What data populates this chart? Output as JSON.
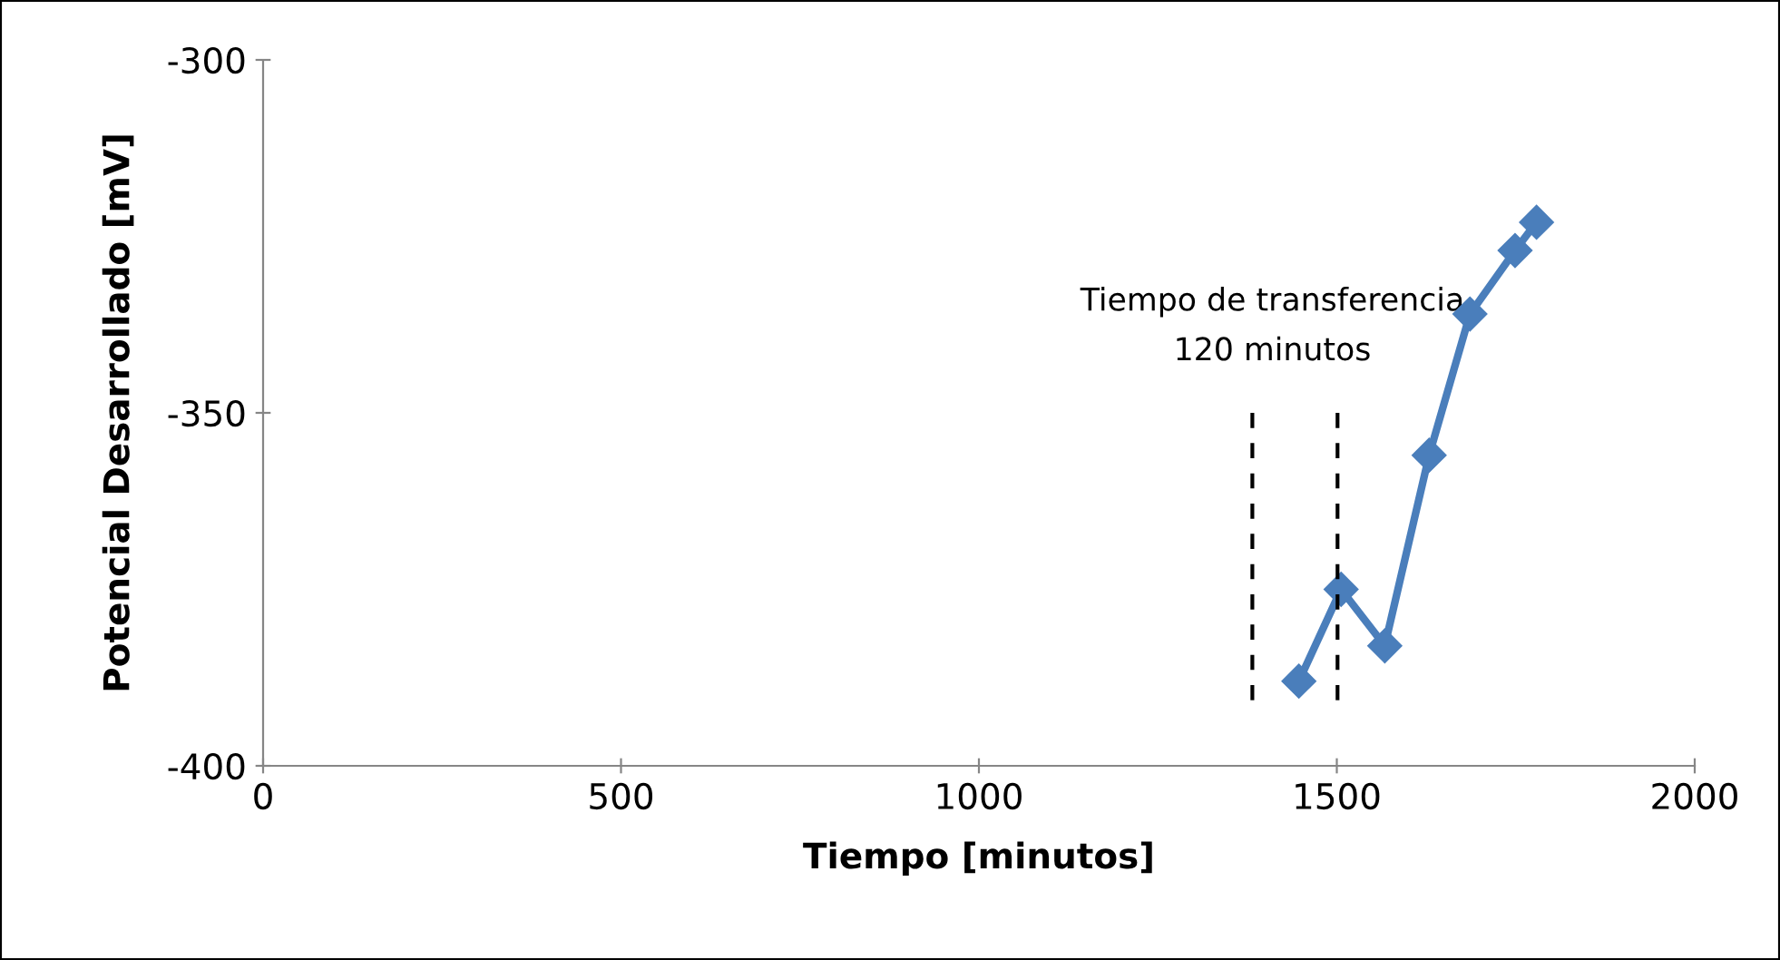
{
  "chart_data": {
    "type": "line",
    "xlabel": "Tiempo [minutos]",
    "ylabel": "Potencial Desarrollado [mV]",
    "xlim": [
      0,
      2000
    ],
    "xticks": [
      0,
      500,
      1000,
      1500,
      2000
    ],
    "ylim": [
      -400,
      -300
    ],
    "yticks": [
      -400,
      -350,
      -300
    ],
    "grid": false,
    "legend": false,
    "marker": "diamond",
    "series": [
      {
        "color": "#4a7ebb",
        "x": [
          1447,
          1506,
          1567,
          1629,
          1686,
          1749,
          1779
        ],
        "values": [
          -388,
          -375,
          -383,
          -356,
          -336,
          -327,
          -323
        ]
      },
      {
        "color": "#000000",
        "line_style": "dashed",
        "marker": "none",
        "x": [
          1382,
          1382
        ],
        "values": [
          -350,
          -391
        ]
      },
      {
        "color": "#000000",
        "line_style": "dashed",
        "marker": "none",
        "x": [
          1501,
          1501
        ],
        "values": [
          -350,
          -391
        ]
      }
    ],
    "annotations": [
      "Tiempo de transferencia\n120 minutos"
    ]
  }
}
